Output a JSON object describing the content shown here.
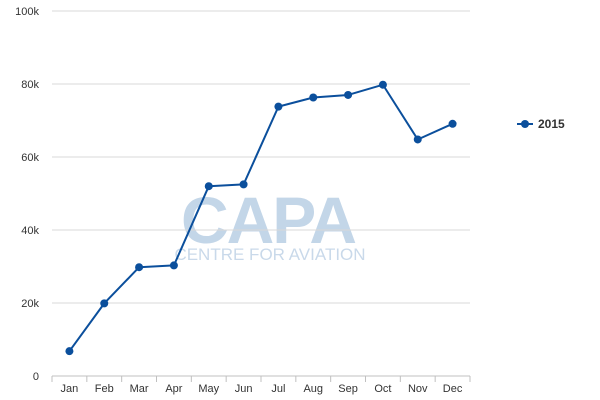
{
  "watermark": {
    "logo": "CAPA",
    "tagline": "CENTRE FOR AVIATION"
  },
  "colors": {
    "series": "#0b4f9c",
    "grid": "#d8d8d8",
    "axis": "#c0c0c0",
    "watermark": "#c3d6e8"
  },
  "chart_data": {
    "type": "line",
    "title": "",
    "xlabel": "",
    "ylabel": "",
    "categories": [
      "Jan",
      "Feb",
      "Mar",
      "Apr",
      "May",
      "Jun",
      "Jul",
      "Aug",
      "Sep",
      "Oct",
      "Nov",
      "Dec"
    ],
    "series": [
      {
        "name": "2015",
        "color": "#0b4f9c",
        "values": [
          6800,
          19900,
          29800,
          30300,
          52000,
          52500,
          73800,
          76300,
          77000,
          79800,
          64800,
          69100
        ]
      }
    ],
    "ylim": [
      0,
      100000
    ],
    "yticks": [
      0,
      20000,
      40000,
      60000,
      80000,
      100000
    ],
    "ytick_labels": [
      "0",
      "20k",
      "40k",
      "60k",
      "80k",
      "100k"
    ],
    "grid": true,
    "legend_position": "right"
  }
}
